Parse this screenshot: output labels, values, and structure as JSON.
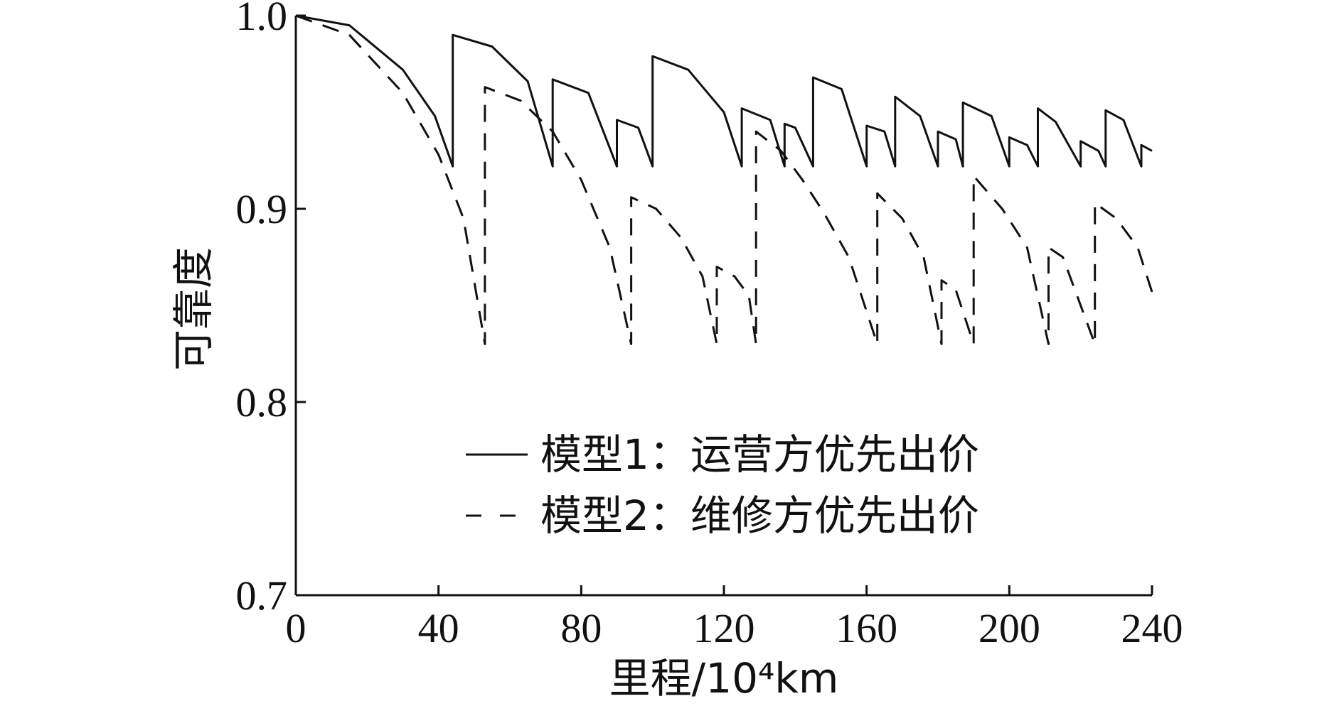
{
  "chart_data": {
    "type": "line",
    "xlabel": "里程/10⁴km",
    "ylabel": "可靠度",
    "xlim": [
      0,
      240
    ],
    "ylim": [
      0.7,
      1.0
    ],
    "x_ticks": [
      "0",
      "40",
      "80",
      "120",
      "160",
      "200",
      "240"
    ],
    "y_ticks": [
      "0.7",
      "0.8",
      "0.9",
      "1.0"
    ],
    "grid": false,
    "legend_position": "lower-center",
    "series": [
      {
        "name": "模型1：运营方优先出价",
        "style": "solid",
        "color": "#111111",
        "points": [
          [
            0,
            1.0
          ],
          [
            15,
            0.995
          ],
          [
            30,
            0.972
          ],
          [
            39,
            0.948
          ],
          [
            44,
            0.922
          ],
          [
            44,
            0.99
          ],
          [
            55,
            0.984
          ],
          [
            65,
            0.966
          ],
          [
            72,
            0.922
          ],
          [
            72,
            0.967
          ],
          [
            82,
            0.96
          ],
          [
            90,
            0.922
          ],
          [
            90,
            0.946
          ],
          [
            96,
            0.942
          ],
          [
            100,
            0.922
          ],
          [
            100,
            0.979
          ],
          [
            110,
            0.972
          ],
          [
            120,
            0.95
          ],
          [
            125,
            0.922
          ],
          [
            125,
            0.952
          ],
          [
            133,
            0.946
          ],
          [
            137,
            0.922
          ],
          [
            137,
            0.944
          ],
          [
            140,
            0.942
          ],
          [
            145,
            0.922
          ],
          [
            145,
            0.968
          ],
          [
            153,
            0.962
          ],
          [
            160,
            0.922
          ],
          [
            160,
            0.943
          ],
          [
            165,
            0.94
          ],
          [
            168,
            0.922
          ],
          [
            168,
            0.958
          ],
          [
            175,
            0.948
          ],
          [
            180,
            0.922
          ],
          [
            180,
            0.94
          ],
          [
            185,
            0.936
          ],
          [
            187,
            0.922
          ],
          [
            187,
            0.955
          ],
          [
            195,
            0.948
          ],
          [
            200,
            0.922
          ],
          [
            200,
            0.937
          ],
          [
            205,
            0.933
          ],
          [
            208,
            0.922
          ],
          [
            208,
            0.952
          ],
          [
            213,
            0.945
          ],
          [
            220,
            0.922
          ],
          [
            220,
            0.935
          ],
          [
            225,
            0.93
          ],
          [
            227,
            0.922
          ],
          [
            227,
            0.951
          ],
          [
            232,
            0.946
          ],
          [
            237,
            0.922
          ],
          [
            237,
            0.933
          ],
          [
            240,
            0.93
          ]
        ]
      },
      {
        "name": "模型2：维修方优先出价",
        "style": "dashed",
        "color": "#111111",
        "points": [
          [
            0,
            1.0
          ],
          [
            15,
            0.99
          ],
          [
            30,
            0.96
          ],
          [
            40,
            0.928
          ],
          [
            47,
            0.895
          ],
          [
            53,
            0.83
          ],
          [
            53,
            0.963
          ],
          [
            63,
            0.956
          ],
          [
            72,
            0.94
          ],
          [
            80,
            0.915
          ],
          [
            88,
            0.88
          ],
          [
            94,
            0.83
          ],
          [
            94,
            0.906
          ],
          [
            101,
            0.9
          ],
          [
            108,
            0.885
          ],
          [
            114,
            0.865
          ],
          [
            118,
            0.83
          ],
          [
            118,
            0.87
          ],
          [
            123,
            0.865
          ],
          [
            127,
            0.855
          ],
          [
            129,
            0.83
          ],
          [
            129,
            0.94
          ],
          [
            136,
            0.93
          ],
          [
            142,
            0.915
          ],
          [
            148,
            0.898
          ],
          [
            155,
            0.875
          ],
          [
            163,
            0.83
          ],
          [
            163,
            0.908
          ],
          [
            170,
            0.895
          ],
          [
            176,
            0.875
          ],
          [
            181,
            0.83
          ],
          [
            181,
            0.863
          ],
          [
            185,
            0.858
          ],
          [
            190,
            0.83
          ],
          [
            190,
            0.917
          ],
          [
            198,
            0.9
          ],
          [
            205,
            0.88
          ],
          [
            211,
            0.83
          ],
          [
            211,
            0.88
          ],
          [
            215,
            0.875
          ],
          [
            224,
            0.83
          ],
          [
            224,
            0.903
          ],
          [
            230,
            0.895
          ],
          [
            236,
            0.88
          ],
          [
            240,
            0.857
          ]
        ]
      }
    ]
  }
}
